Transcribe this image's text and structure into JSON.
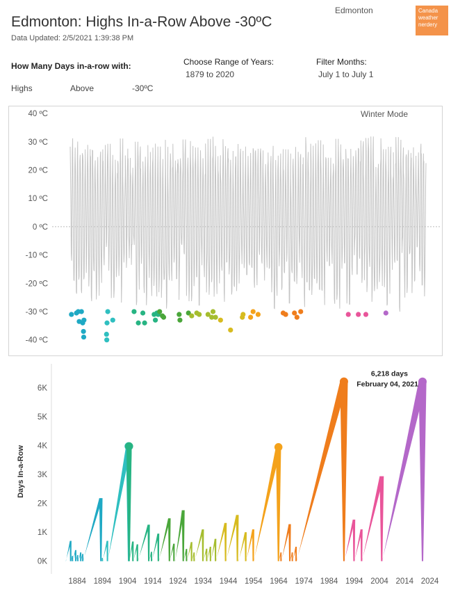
{
  "header": {
    "title": "Edmonton: Highs In-a-Row Above -30ºC",
    "updated": "Data Updated: 2/5/2021 1:39:38 PM",
    "city": "Edmonton",
    "brand": [
      "Canada",
      "weather",
      "nerdery"
    ]
  },
  "filters": {
    "days_label": "How Many Days in-a-row with:",
    "measure": "Highs",
    "direction": "Above",
    "threshold": "-30ºC",
    "range_label": "Choose Range of Years:",
    "range_value": "1879 to 2020",
    "months_label": "Filter Months:",
    "months_value": "July 1 to July 1"
  },
  "colors": {
    "temp_line": "#c4c4c4",
    "dot_palette": [
      "#1fa9c4",
      "#2fbfc0",
      "#27b483",
      "#4aa63a",
      "#a5bd2e",
      "#d7bb1f",
      "#f4a21b",
      "#ef7d1c",
      "#df3030",
      "#e9559a",
      "#b468c9",
      "#5a70c0"
    ]
  },
  "chart_data": [
    {
      "type": "line",
      "title": "",
      "annotation": "Winter Mode",
      "ylabel": "",
      "ylim": [
        -45,
        42
      ],
      "yticks": [
        "40 ºC",
        "30 ºC",
        "20 ºC",
        "10 ºC",
        "0 ºC",
        "-10 ºC",
        "-20 ºC",
        "-30 ºC",
        "-40 ºC"
      ],
      "ytick_values": [
        40,
        30,
        20,
        10,
        0,
        -10,
        -20,
        -30,
        -40
      ],
      "xlim": [
        1879,
        2021
      ],
      "series": [
        {
          "color_key": "temp_line",
          "description_values": "daily highs oscillating annually between about -30 and 32 ºC"
        }
      ],
      "cold_points": [
        {
          "x": 1879.5,
          "y": -31
        },
        {
          "x": 1881.5,
          "y": -30.5
        },
        {
          "x": 1882.2,
          "y": -30
        },
        {
          "x": 1882.6,
          "y": -33.5
        },
        {
          "x": 1883.5,
          "y": -30
        },
        {
          "x": 1884.0,
          "y": -34
        },
        {
          "x": 1884.3,
          "y": -37
        },
        {
          "x": 1884.4,
          "y": -39
        },
        {
          "x": 1884.5,
          "y": -33
        },
        {
          "x": 1893.5,
          "y": -38
        },
        {
          "x": 1893.6,
          "y": -40
        },
        {
          "x": 1893.7,
          "y": -34
        },
        {
          "x": 1894.0,
          "y": -30
        },
        {
          "x": 1896.0,
          "y": -33
        },
        {
          "x": 1904.5,
          "y": -30
        },
        {
          "x": 1906.2,
          "y": -34
        },
        {
          "x": 1908.0,
          "y": -30.5
        },
        {
          "x": 1908.7,
          "y": -34
        },
        {
          "x": 1912.5,
          "y": -31
        },
        {
          "x": 1913.0,
          "y": -33
        },
        {
          "x": 1913.6,
          "y": -30.5
        },
        {
          "x": 1914.1,
          "y": -31
        },
        {
          "x": 1914.7,
          "y": -30
        },
        {
          "x": 1915.8,
          "y": -31.5
        },
        {
          "x": 1916.3,
          "y": -32
        },
        {
          "x": 1922.5,
          "y": -31
        },
        {
          "x": 1922.8,
          "y": -33
        },
        {
          "x": 1926.2,
          "y": -30.5
        },
        {
          "x": 1927.5,
          "y": -31.5
        },
        {
          "x": 1929.5,
          "y": -30.5
        },
        {
          "x": 1930.5,
          "y": -31
        },
        {
          "x": 1934.0,
          "y": -31
        },
        {
          "x": 1935.5,
          "y": -32
        },
        {
          "x": 1936.0,
          "y": -30
        },
        {
          "x": 1937.0,
          "y": -32
        },
        {
          "x": 1939.0,
          "y": -33
        },
        {
          "x": 1943.0,
          "y": -36.5
        },
        {
          "x": 1947.7,
          "y": -32
        },
        {
          "x": 1948.0,
          "y": -31
        },
        {
          "x": 1951.0,
          "y": -32
        },
        {
          "x": 1952.0,
          "y": -30
        },
        {
          "x": 1954.0,
          "y": -31
        },
        {
          "x": 1964.0,
          "y": -30.5
        },
        {
          "x": 1965.0,
          "y": -31
        },
        {
          "x": 1968.5,
          "y": -30.5
        },
        {
          "x": 1969.5,
          "y": -32
        },
        {
          "x": 1971.0,
          "y": -30
        },
        {
          "x": 1990.0,
          "y": -31
        },
        {
          "x": 1994.0,
          "y": -31
        },
        {
          "x": 1997.0,
          "y": -31
        },
        {
          "x": 2005.0,
          "y": -30.5
        }
      ]
    },
    {
      "type": "line",
      "title": "",
      "xlabel": "",
      "ylabel": "Days In-a-Row",
      "ylim": [
        -200,
        6500
      ],
      "yticks": [
        "0K",
        "1K",
        "2K",
        "3K",
        "4K",
        "5K",
        "6K"
      ],
      "ytick_values": [
        0,
        1000,
        2000,
        3000,
        4000,
        5000,
        6000
      ],
      "xlim": [
        1877,
        2027
      ],
      "xticks": [
        "1884",
        "1894",
        "1904",
        "1914",
        "1924",
        "1934",
        "1944",
        "1954",
        "1964",
        "1974",
        "1984",
        "1994",
        "2004",
        "2014",
        "2024"
      ],
      "xtick_values": [
        1884,
        1894,
        1904,
        1914,
        1924,
        1934,
        1944,
        1954,
        1964,
        1974,
        1984,
        1994,
        2004,
        2014,
        2024
      ],
      "annotation": {
        "x": 2021.1,
        "y": 6218,
        "line1": "6,218 days",
        "line2": "February 04, 2021"
      },
      "streaks": [
        {
          "start": 1879.5,
          "end": 1881.4,
          "peak": 700
        },
        {
          "start": 1881.6,
          "end": 1882.1,
          "peak": 180
        },
        {
          "start": 1882.3,
          "end": 1883.4,
          "peak": 380
        },
        {
          "start": 1883.6,
          "end": 1884.2,
          "peak": 210
        },
        {
          "start": 1884.5,
          "end": 1885.4,
          "peak": 300
        },
        {
          "start": 1885.5,
          "end": 1886.2,
          "peak": 250
        },
        {
          "start": 1886.3,
          "end": 1893.4,
          "peak": 2180
        },
        {
          "start": 1893.7,
          "end": 1894.0,
          "peak": 110
        },
        {
          "start": 1894.1,
          "end": 1896.0,
          "peak": 700
        },
        {
          "start": 1896.1,
          "end": 1904.4,
          "peak": 3980
        },
        {
          "start": 1904.5,
          "end": 1904.6,
          "peak": 3980
        },
        {
          "start": 1904.7,
          "end": 1906.1,
          "peak": 680
        },
        {
          "start": 1906.3,
          "end": 1907.9,
          "peak": 580
        },
        {
          "start": 1908.1,
          "end": 1912.4,
          "peak": 1260
        },
        {
          "start": 1912.6,
          "end": 1913.5,
          "peak": 320
        },
        {
          "start": 1913.7,
          "end": 1916.2,
          "peak": 950
        },
        {
          "start": 1916.4,
          "end": 1920.6,
          "peak": 1480
        },
        {
          "start": 1920.7,
          "end": 1922.4,
          "peak": 600
        },
        {
          "start": 1922.9,
          "end": 1926.1,
          "peak": 1760
        },
        {
          "start": 1926.3,
          "end": 1927.4,
          "peak": 420
        },
        {
          "start": 1927.6,
          "end": 1929.4,
          "peak": 660
        },
        {
          "start": 1929.6,
          "end": 1930.4,
          "peak": 300
        },
        {
          "start": 1930.6,
          "end": 1933.9,
          "peak": 1100
        },
        {
          "start": 1934.1,
          "end": 1935.4,
          "peak": 430
        },
        {
          "start": 1935.6,
          "end": 1936.9,
          "peak": 500
        },
        {
          "start": 1937.1,
          "end": 1938.9,
          "peak": 770
        },
        {
          "start": 1939.1,
          "end": 1942.9,
          "peak": 1320
        },
        {
          "start": 1943.1,
          "end": 1947.6,
          "peak": 1600
        },
        {
          "start": 1948.1,
          "end": 1950.9,
          "peak": 1000
        },
        {
          "start": 1951.1,
          "end": 1953.9,
          "peak": 1100
        },
        {
          "start": 1954.1,
          "end": 1963.9,
          "peak": 3950
        },
        {
          "start": 1964.1,
          "end": 1964.9,
          "peak": 300
        },
        {
          "start": 1965.1,
          "end": 1968.4,
          "peak": 1280
        },
        {
          "start": 1968.6,
          "end": 1969.4,
          "peak": 300
        },
        {
          "start": 1969.6,
          "end": 1970.9,
          "peak": 500
        },
        {
          "start": 1971.1,
          "end": 1989.9,
          "peak": 6220
        },
        {
          "start": 1990.1,
          "end": 1993.9,
          "peak": 1440
        },
        {
          "start": 1994.1,
          "end": 1996.9,
          "peak": 1100
        },
        {
          "start": 1997.1,
          "end": 2004.9,
          "peak": 2940
        },
        {
          "start": 2005.1,
          "end": 2021.1,
          "peak": 6218
        }
      ]
    }
  ]
}
